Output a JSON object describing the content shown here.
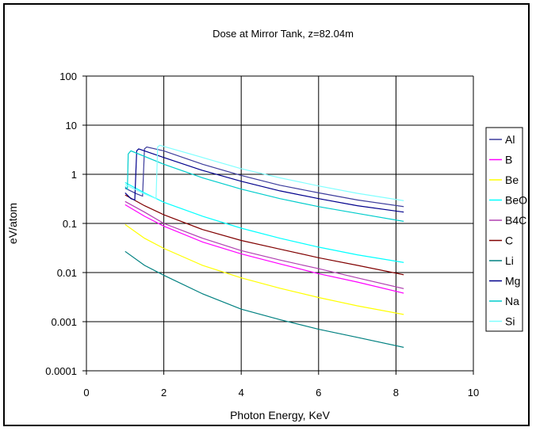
{
  "chart_data": {
    "type": "line",
    "title": "Dose at Mirror Tank, z=82.04m",
    "xlabel": "Photon Energy, KeV",
    "ylabel": "eV/atom",
    "xlim": [
      0,
      10
    ],
    "ylim": [
      0.0001,
      100
    ],
    "yscale": "log",
    "grid": true,
    "legend_position": "right",
    "x_ticks": [
      "0",
      "2",
      "4",
      "6",
      "8",
      "10"
    ],
    "y_ticks": [
      "0.0001",
      "0.001",
      "0.01",
      "0.1",
      "1",
      "10",
      "100"
    ],
    "series": [
      {
        "name": "Al",
        "color": "#3c3c9c",
        "points": [
          [
            1.0,
            0.52
          ],
          [
            1.3,
            0.4
          ],
          [
            1.45,
            0.36
          ],
          [
            1.5,
            3.3
          ],
          [
            1.56,
            3.6
          ],
          [
            2,
            3.0
          ],
          [
            3,
            1.6
          ],
          [
            4,
            0.95
          ],
          [
            5,
            0.6
          ],
          [
            6,
            0.42
          ],
          [
            7,
            0.3
          ],
          [
            8.2,
            0.22
          ]
        ]
      },
      {
        "name": "B",
        "color": "#ff00ff",
        "points": [
          [
            1.0,
            0.24
          ],
          [
            1.5,
            0.14
          ],
          [
            2,
            0.088
          ],
          [
            3,
            0.042
          ],
          [
            4,
            0.024
          ],
          [
            5,
            0.015
          ],
          [
            6,
            0.0095
          ],
          [
            7,
            0.0064
          ],
          [
            8.2,
            0.0038
          ]
        ]
      },
      {
        "name": "Be",
        "color": "#ffff00",
        "points": [
          [
            1.0,
            0.095
          ],
          [
            1.5,
            0.05
          ],
          [
            2,
            0.031
          ],
          [
            3,
            0.014
          ],
          [
            4,
            0.0078
          ],
          [
            5,
            0.0048
          ],
          [
            6,
            0.0031
          ],
          [
            7,
            0.0021
          ],
          [
            8.2,
            0.0014
          ]
        ]
      },
      {
        "name": "BeO",
        "color": "#00ffff",
        "points": [
          [
            1.0,
            0.68
          ],
          [
            1.5,
            0.42
          ],
          [
            2,
            0.27
          ],
          [
            3,
            0.14
          ],
          [
            4,
            0.08
          ],
          [
            5,
            0.05
          ],
          [
            6,
            0.033
          ],
          [
            7,
            0.023
          ],
          [
            8.2,
            0.016
          ]
        ]
      },
      {
        "name": "B4C",
        "color": "#b040b0",
        "points": [
          [
            1.0,
            0.28
          ],
          [
            1.5,
            0.17
          ],
          [
            2,
            0.1
          ],
          [
            3,
            0.05
          ],
          [
            4,
            0.028
          ],
          [
            5,
            0.018
          ],
          [
            6,
            0.012
          ],
          [
            7,
            0.0078
          ],
          [
            8.2,
            0.0047
          ]
        ]
      },
      {
        "name": "C",
        "color": "#800000",
        "points": [
          [
            1.0,
            0.38
          ],
          [
            1.5,
            0.23
          ],
          [
            2,
            0.15
          ],
          [
            3,
            0.075
          ],
          [
            4,
            0.045
          ],
          [
            5,
            0.03
          ],
          [
            6,
            0.02
          ],
          [
            7,
            0.014
          ],
          [
            8.2,
            0.009
          ]
        ]
      },
      {
        "name": "Li",
        "color": "#008080",
        "points": [
          [
            1.0,
            0.027
          ],
          [
            1.5,
            0.014
          ],
          [
            2,
            0.0088
          ],
          [
            3,
            0.0037
          ],
          [
            4,
            0.0018
          ],
          [
            5,
            0.0011
          ],
          [
            6,
            0.0007
          ],
          [
            7,
            0.00048
          ],
          [
            8.2,
            0.0003
          ]
        ]
      },
      {
        "name": "Mg",
        "color": "#00008c",
        "points": [
          [
            1.0,
            0.42
          ],
          [
            1.15,
            0.32
          ],
          [
            1.25,
            0.3
          ],
          [
            1.3,
            3.0
          ],
          [
            1.35,
            3.3
          ],
          [
            2,
            2.2
          ],
          [
            3,
            1.2
          ],
          [
            4,
            0.72
          ],
          [
            5,
            0.46
          ],
          [
            6,
            0.32
          ],
          [
            7,
            0.23
          ],
          [
            8.2,
            0.17
          ]
        ]
      },
      {
        "name": "Na",
        "color": "#00cccc",
        "points": [
          [
            1.0,
            0.56
          ],
          [
            1.06,
            0.5
          ],
          [
            1.08,
            2.6
          ],
          [
            1.15,
            3.0
          ],
          [
            2,
            1.6
          ],
          [
            3,
            0.85
          ],
          [
            4,
            0.5
          ],
          [
            5,
            0.32
          ],
          [
            6,
            0.22
          ],
          [
            7,
            0.16
          ],
          [
            8.2,
            0.11
          ]
        ]
      },
      {
        "name": "Si",
        "color": "#80ffff",
        "points": [
          [
            1.0,
            0.62
          ],
          [
            1.5,
            0.4
          ],
          [
            1.8,
            0.32
          ],
          [
            1.84,
            3.6
          ],
          [
            1.9,
            3.9
          ],
          [
            2,
            3.7
          ],
          [
            3,
            2.2
          ],
          [
            4,
            1.3
          ],
          [
            5,
            0.85
          ],
          [
            6,
            0.58
          ],
          [
            7,
            0.41
          ],
          [
            8.2,
            0.29
          ]
        ]
      }
    ]
  }
}
